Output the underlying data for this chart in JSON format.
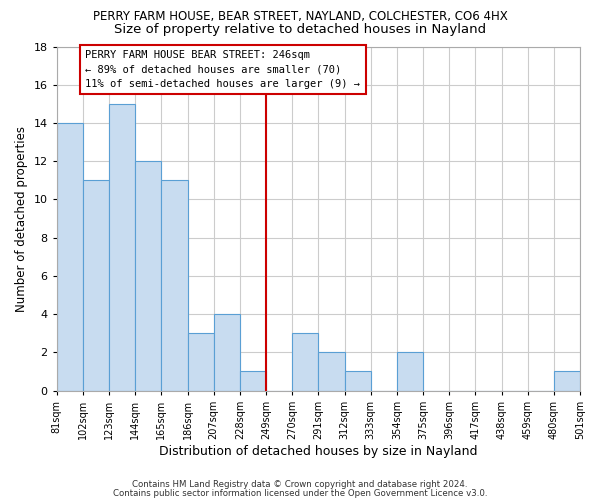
{
  "title": "PERRY FARM HOUSE, BEAR STREET, NAYLAND, COLCHESTER, CO6 4HX",
  "subtitle": "Size of property relative to detached houses in Nayland",
  "xlabel": "Distribution of detached houses by size in Nayland",
  "ylabel": "Number of detached properties",
  "bar_edges": [
    81,
    102,
    123,
    144,
    165,
    186,
    207,
    228,
    249,
    270,
    291,
    312,
    333,
    354,
    375,
    396,
    417,
    438,
    459,
    480,
    501
  ],
  "bar_heights": [
    14,
    11,
    15,
    12,
    11,
    3,
    4,
    1,
    0,
    3,
    2,
    1,
    0,
    2,
    0,
    0,
    0,
    0,
    0,
    1
  ],
  "bar_color": "#c8dcf0",
  "bar_edge_color": "#5a9fd4",
  "vline_x": 249,
  "vline_color": "#cc0000",
  "annotation_title": "PERRY FARM HOUSE BEAR STREET: 246sqm",
  "annotation_line1": "← 89% of detached houses are smaller (70)",
  "annotation_line2": "11% of semi-detached houses are larger (9) →",
  "annotation_box_color": "#ffffff",
  "annotation_border_color": "#cc0000",
  "ylim": [
    0,
    18
  ],
  "yticks": [
    0,
    2,
    4,
    6,
    8,
    10,
    12,
    14,
    16,
    18
  ],
  "tick_labels": [
    "81sqm",
    "102sqm",
    "123sqm",
    "144sqm",
    "165sqm",
    "186sqm",
    "207sqm",
    "228sqm",
    "249sqm",
    "270sqm",
    "291sqm",
    "312sqm",
    "333sqm",
    "354sqm",
    "375sqm",
    "396sqm",
    "417sqm",
    "438sqm",
    "459sqm",
    "480sqm",
    "501sqm"
  ],
  "footnote1": "Contains HM Land Registry data © Crown copyright and database right 2024.",
  "footnote2": "Contains public sector information licensed under the Open Government Licence v3.0.",
  "bg_color": "#ffffff",
  "grid_color": "#cccccc",
  "title_fontsize": 8.5,
  "subtitle_fontsize": 9.5
}
